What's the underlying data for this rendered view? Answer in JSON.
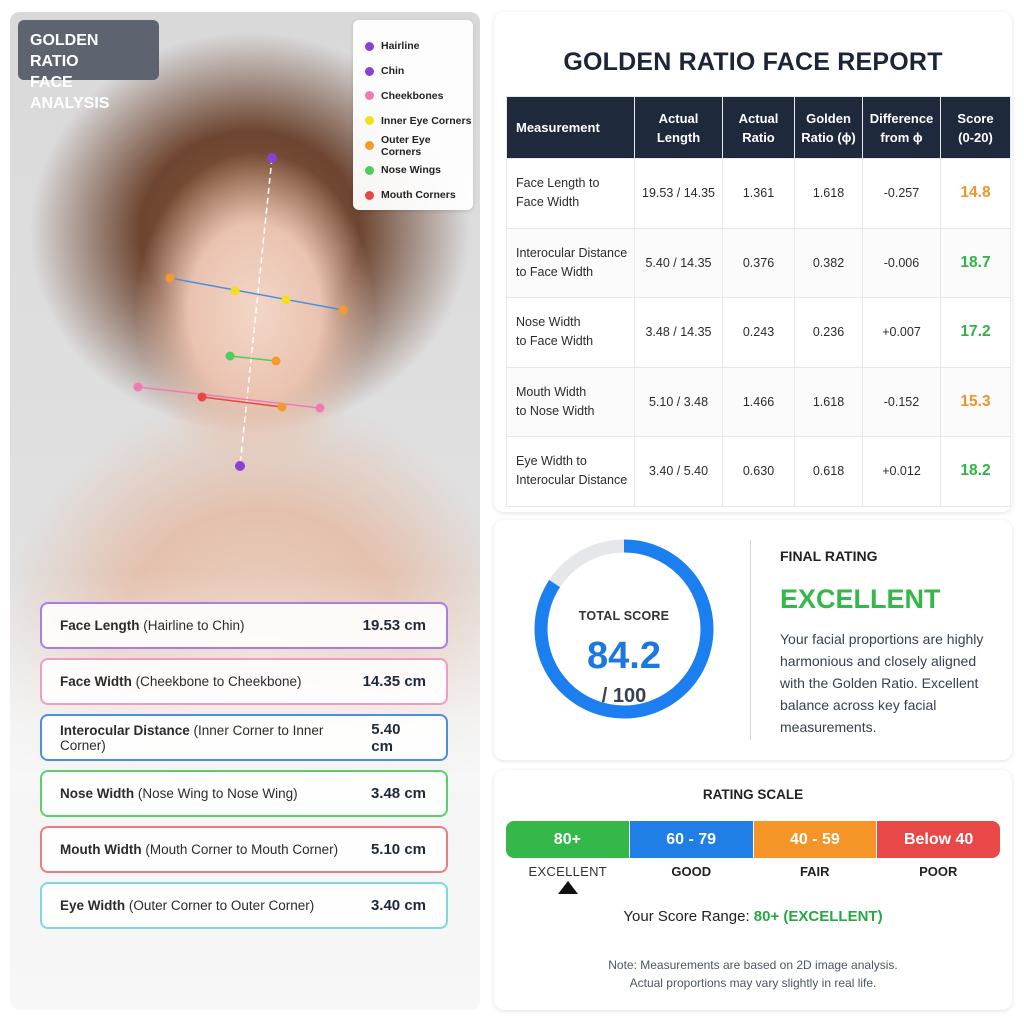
{
  "left": {
    "badge_line1": "GOLDEN RATIO",
    "badge_line2": "FACE ANALYSIS",
    "legend": [
      {
        "label": "Hairline",
        "color": "#8b3fd9"
      },
      {
        "label": "Chin",
        "color": "#8b3fd9"
      },
      {
        "label": "Cheekbones",
        "color": "#f27ab0"
      },
      {
        "label": "Inner Eye Corners",
        "color": "#f2df1f"
      },
      {
        "label": "Outer Eye Corners",
        "color": "#f59a2b"
      },
      {
        "label": "Nose Wings",
        "color": "#4cce5c"
      },
      {
        "label": "Mouth Corners",
        "color": "#e94545"
      }
    ],
    "measurements": [
      {
        "name": "Face Length",
        "detail": " (Hairline to Chin)",
        "value": "19.53 cm",
        "color": "#a77ee6"
      },
      {
        "name": "Face Width",
        "detail": " (Cheekbone to Cheekbone)",
        "value": "14.35 cm",
        "color": "#f29bc2"
      },
      {
        "name": "Interocular Distance",
        "detail": " (Inner Corner to Inner Corner)",
        "value": "5.40 cm",
        "color": "#4a8fe0"
      },
      {
        "name": "Nose Width",
        "detail": " (Nose Wing to Nose Wing)",
        "value": "3.48 cm",
        "color": "#5ccf6a"
      },
      {
        "name": "Mouth Width",
        "detail": " (Mouth Corner to Mouth Corner)",
        "value": "5.10 cm",
        "color": "#ec7d7d"
      },
      {
        "name": "Eye Width",
        "detail": " (Outer Corner to Outer Corner)",
        "value": "3.40 cm",
        "color": "#7fd6e6"
      }
    ]
  },
  "report": {
    "title": "GOLDEN RATIO FACE REPORT",
    "headers": [
      {
        "line1": "Measurement",
        "line2": ""
      },
      {
        "line1": "Actual",
        "line2": "Length"
      },
      {
        "line1": "Actual",
        "line2": "Ratio"
      },
      {
        "line1": "Golden",
        "line2": "Ratio (ϕ)"
      },
      {
        "line1": "Difference",
        "line2": "from ϕ"
      },
      {
        "line1": "Score",
        "line2": "(0-20)"
      }
    ],
    "rows": [
      {
        "m1": "Face Length to",
        "m2": "Face Width",
        "length": "19.53 / 14.35",
        "ratio": "1.361",
        "golden": "1.618",
        "diff": "-0.257",
        "score": "14.8",
        "score_color": "#f0932b"
      },
      {
        "m1": "Interocular Distance",
        "m2": "to Face Width",
        "length": "5.40 / 14.35",
        "ratio": "0.376",
        "golden": "0.382",
        "diff": "-0.006",
        "score": "18.7",
        "score_color": "#2fb14c"
      },
      {
        "m1": "Nose Width",
        "m2": "to Face Width",
        "length": "3.48 / 14.35",
        "ratio": "0.243",
        "golden": "0.236",
        "diff": "+0.007",
        "score": "17.2",
        "score_color": "#2fb14c"
      },
      {
        "m1": "Mouth Width",
        "m2": "to Nose Width",
        "length": "5.10 / 3.48",
        "ratio": "1.466",
        "golden": "1.618",
        "diff": "-0.152",
        "score": "15.3",
        "score_color": "#f0932b"
      },
      {
        "m1": "Eye Width to",
        "m2": "Interocular Distance",
        "length": "3.40 / 5.40",
        "ratio": "0.630",
        "golden": "0.618",
        "diff": "+0.012",
        "score": "18.2",
        "score_color": "#2fb14c"
      }
    ]
  },
  "score": {
    "label": "TOTAL SCORE",
    "value": "84.2",
    "max": "/ 100",
    "fraction": 0.842,
    "ring_color": "#1c7ff0",
    "track_color": "#e5e7eb",
    "final_label": "FINAL RATING",
    "final_rating": "EXCELLENT",
    "description": "Your facial proportions are highly harmonious and closely aligned with the Golden Ratio. Excellent balance across key facial measurements."
  },
  "scale": {
    "title": "RATING SCALE",
    "segments": [
      {
        "range": "80+",
        "name": "EXCELLENT",
        "color": "#34b84a",
        "active": true
      },
      {
        "range": "60 - 79",
        "name": "GOOD",
        "color": "#1f7fe6",
        "active": false
      },
      {
        "range": "40 - 59",
        "name": "FAIR",
        "color": "#f59427",
        "active": false
      },
      {
        "range": "Below 40",
        "name": "POOR",
        "color": "#e94848",
        "active": false
      }
    ],
    "range_prefix": "Your Score Range: ",
    "range_value": "80+ (EXCELLENT)",
    "note_line1": "Note: Measurements are based on 2D image analysis.",
    "note_line2": "Actual proportions may vary slightly in real life."
  }
}
